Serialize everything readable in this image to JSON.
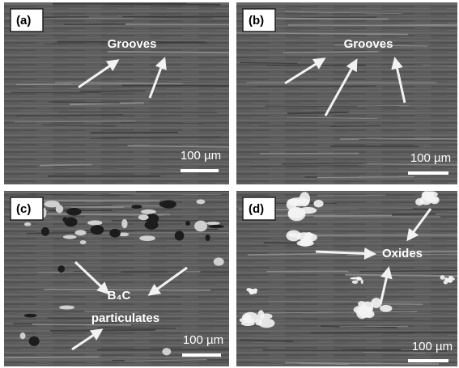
{
  "panels": [
    {
      "label": "(a)",
      "annotations": [
        "Grooves"
      ],
      "scale_bar": "100 µm"
    },
    {
      "label": "(b)",
      "annotations": [
        "Grooves"
      ],
      "scale_bar": "100 µm"
    },
    {
      "label": "(c)",
      "annotations": [
        "B₄C",
        "particulates"
      ],
      "scale_bar": "100 µm"
    },
    {
      "label": "(d)",
      "annotations": [
        "Oxides"
      ],
      "scale_bar": "100 µm"
    }
  ]
}
